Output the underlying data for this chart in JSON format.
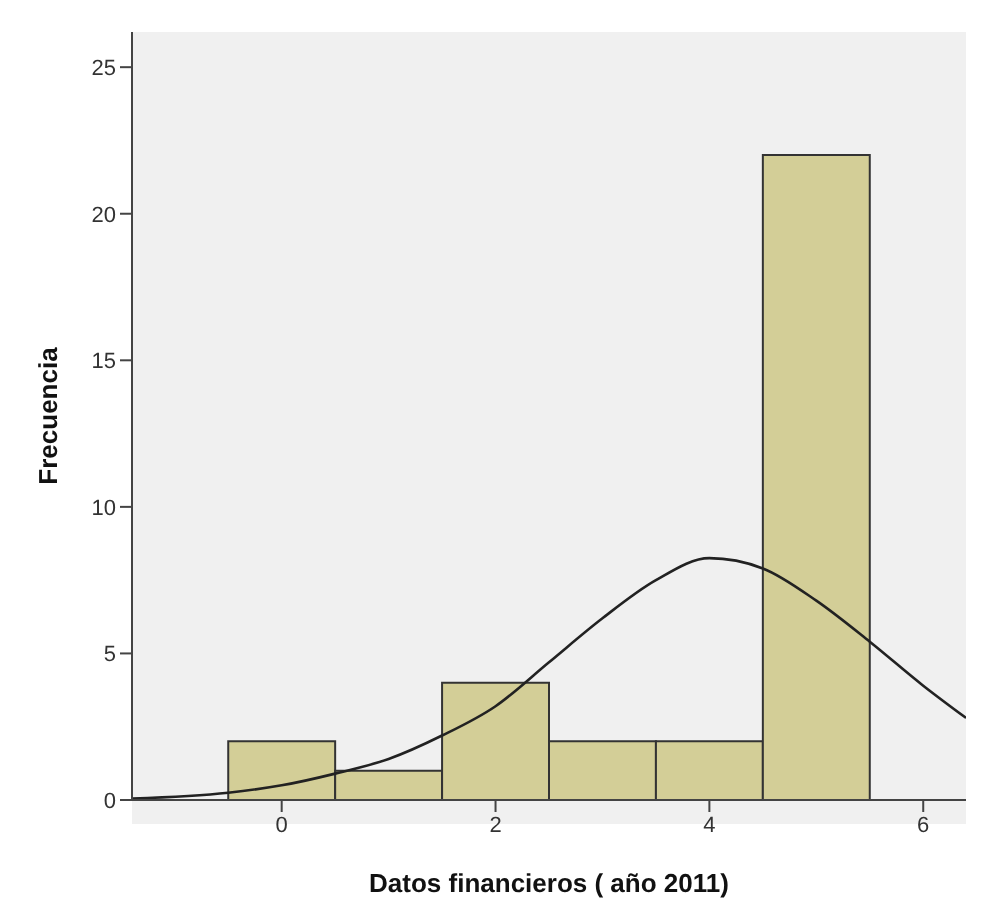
{
  "chart_data": {
    "type": "histogram",
    "xlabel": "Datos financieros ( año 2011)",
    "ylabel": "Frecuencia",
    "bins": [
      -0.5,
      0.5,
      1.5,
      2.5,
      3.5,
      4.5,
      5.5
    ],
    "values": [
      2,
      1,
      4,
      2,
      2,
      22
    ],
    "color": "#d3ce97",
    "series": [
      {
        "type": "line",
        "color": "#222222",
        "x": [
          -1.4,
          -0.5,
          0,
          0.5,
          1,
          1.5,
          2,
          2.5,
          3,
          3.5,
          4,
          4.5,
          5,
          5.5,
          6,
          6.4
        ],
        "values": [
          0.05,
          0.25,
          0.5,
          0.9,
          1.4,
          2.2,
          3.2,
          4.7,
          6.2,
          7.5,
          8.25,
          7.9,
          6.8,
          5.4,
          3.9,
          2.8
        ]
      }
    ],
    "xlim": [
      -1.4,
      6.4
    ],
    "xticks": [
      0,
      2,
      4,
      6
    ],
    "ylim": [
      0,
      26.2
    ],
    "yticks": [
      0,
      5,
      10,
      15,
      20,
      25
    ],
    "grid": false
  }
}
